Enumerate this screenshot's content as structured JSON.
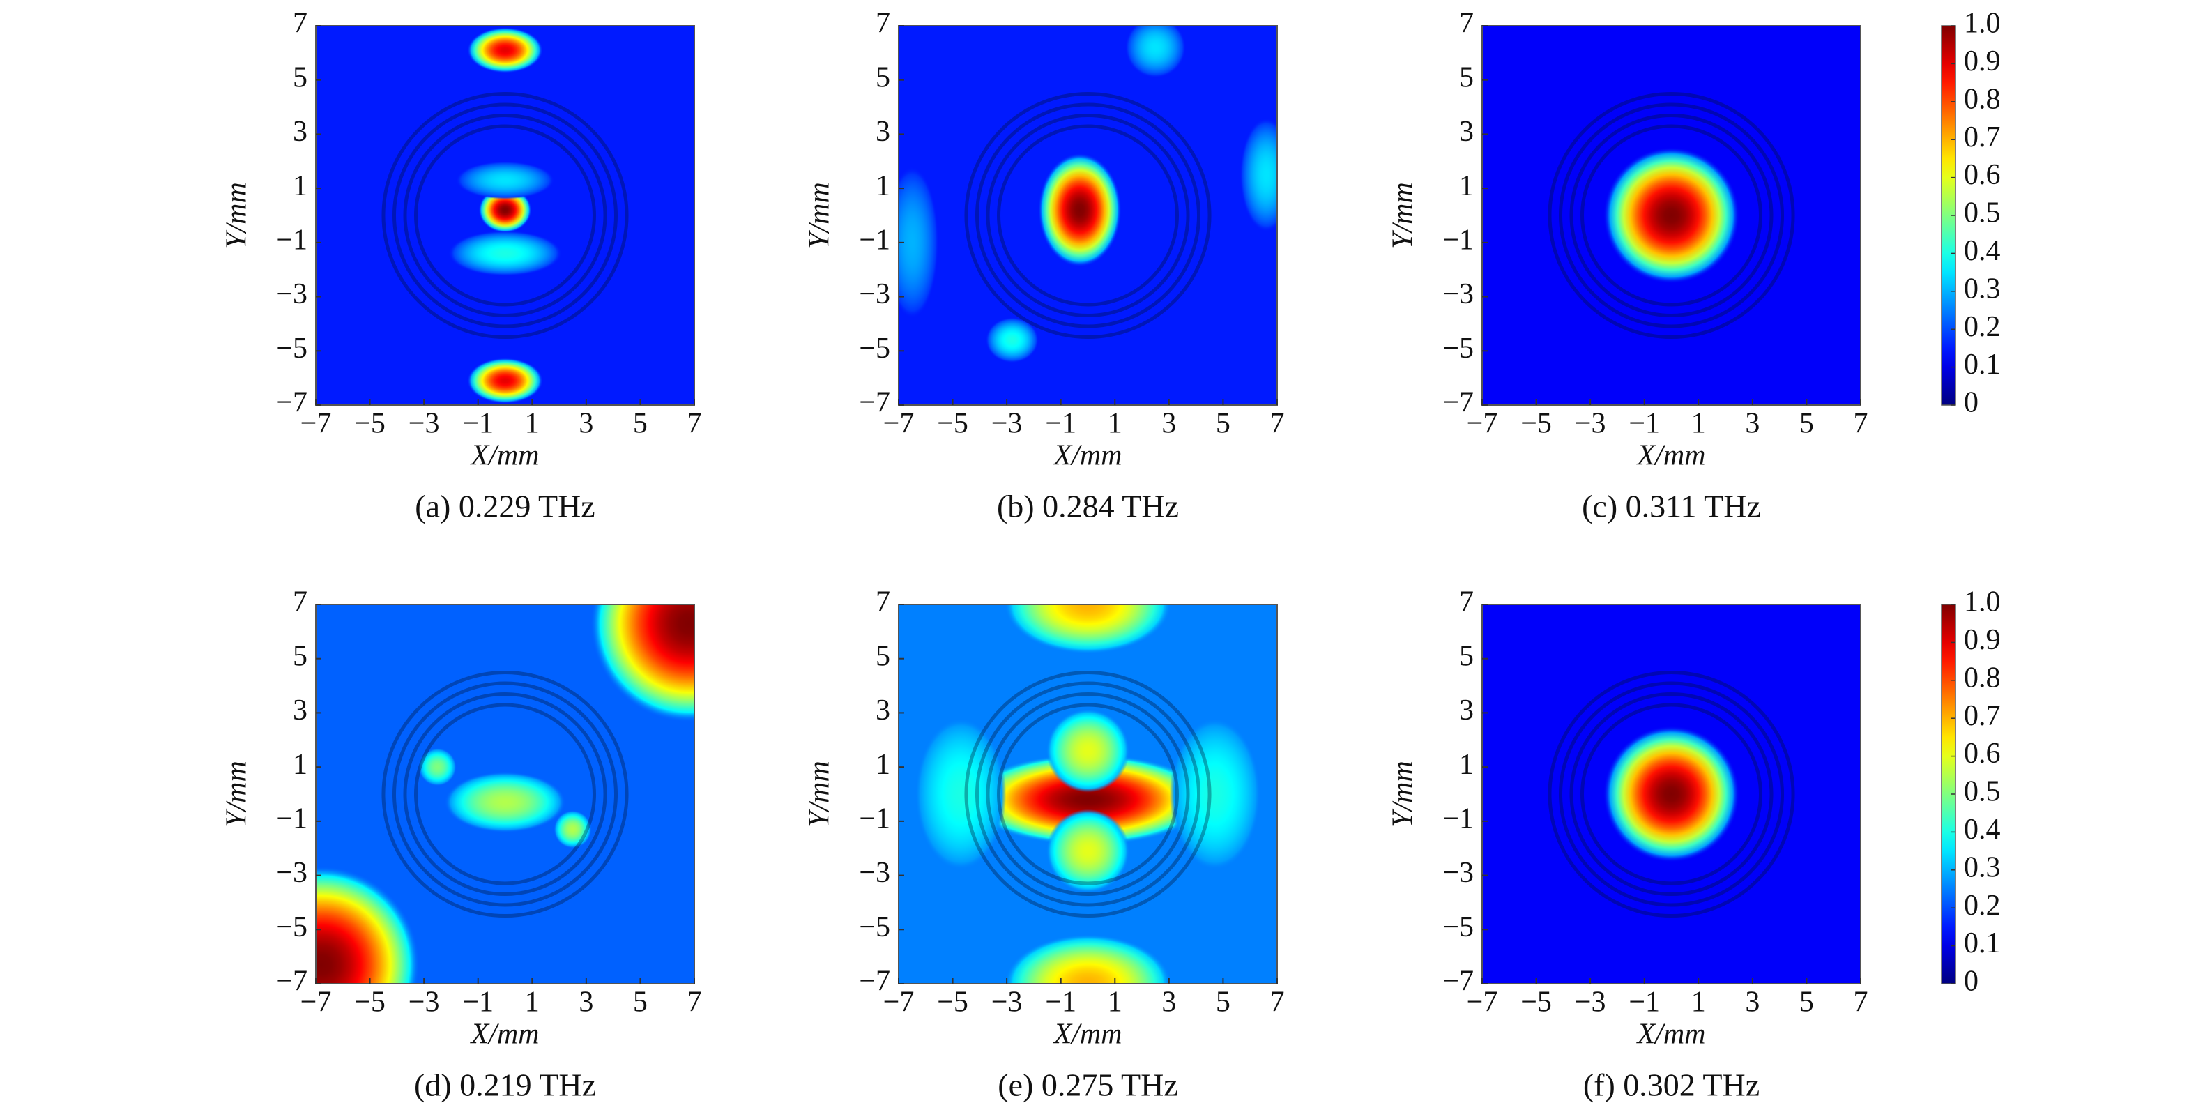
{
  "chart_data": [
    {
      "type": "heatmap",
      "title": "(a) 0.229 THz",
      "xlabel": "X/mm",
      "ylabel": "Y/mm",
      "xlim": [
        -7,
        7
      ],
      "ylim": [
        -7,
        7
      ],
      "xticks": [
        {
          "value": -7,
          "label": "−7"
        },
        {
          "value": -5,
          "label": "−5"
        },
        {
          "value": -3,
          "label": "−3"
        },
        {
          "value": -1,
          "label": "−1"
        },
        1,
        3,
        5,
        7
      ],
      "yticks": [
        {
          "value": -7,
          "label": "−7"
        },
        {
          "value": -5,
          "label": "−5"
        },
        {
          "value": -3,
          "label": "−3"
        },
        {
          "value": -1,
          "label": "−1"
        },
        1,
        3,
        5,
        7
      ],
      "background": 0.15,
      "spots": [
        {
          "x": 0,
          "y": 0.2,
          "rx": 0.7,
          "ry": 0.6,
          "value": 1.0
        },
        {
          "x": 0,
          "y": 6.1,
          "rx": 1.0,
          "ry": 0.6,
          "value": 0.9
        },
        {
          "x": 0,
          "y": -6.1,
          "rx": 1.0,
          "ry": 0.6,
          "value": 0.9
        },
        {
          "x": 0,
          "y": 1.3,
          "rx": 1.3,
          "ry": 0.5,
          "value": 0.35
        },
        {
          "x": 0,
          "y": -1.4,
          "rx": 1.5,
          "ry": 0.6,
          "value": 0.4
        }
      ]
    },
    {
      "type": "heatmap",
      "title": "(b) 0.284 THz",
      "xlabel": "X/mm",
      "ylabel": "Y/mm",
      "xlim": [
        -7,
        7
      ],
      "ylim": [
        -7,
        7
      ],
      "xticks": [
        {
          "value": -7,
          "label": "−7"
        },
        {
          "value": -5,
          "label": "−5"
        },
        {
          "value": -3,
          "label": "−3"
        },
        {
          "value": -1,
          "label": "−1"
        },
        1,
        3,
        5,
        7
      ],
      "yticks": [
        {
          "value": -7,
          "label": "−7"
        },
        {
          "value": -5,
          "label": "−5"
        },
        {
          "value": -3,
          "label": "−3"
        },
        {
          "value": -1,
          "label": "−1"
        },
        1,
        3,
        5,
        7
      ],
      "background": 0.15,
      "spots": [
        {
          "x": -0.3,
          "y": 0.2,
          "rx": 1.1,
          "ry": 1.5,
          "value": 1.0
        },
        {
          "x": 6.6,
          "y": 1.5,
          "rx": 0.7,
          "ry": 1.5,
          "value": 0.35
        },
        {
          "x": -6.5,
          "y": -1.0,
          "rx": 0.7,
          "ry": 2.0,
          "value": 0.3
        },
        {
          "x": -2.8,
          "y": -4.6,
          "rx": 0.7,
          "ry": 0.6,
          "value": 0.4
        },
        {
          "x": 2.5,
          "y": 6.2,
          "rx": 0.8,
          "ry": 0.8,
          "value": 0.35
        }
      ]
    },
    {
      "type": "heatmap",
      "title": "(c) 0.311 THz",
      "xlabel": "X/mm",
      "ylabel": "Y/mm",
      "xlim": [
        -7,
        7
      ],
      "ylim": [
        -7,
        7
      ],
      "xticks": [
        {
          "value": -7,
          "label": "−7"
        },
        {
          "value": -5,
          "label": "−5"
        },
        {
          "value": -3,
          "label": "−3"
        },
        {
          "value": -1,
          "label": "−1"
        },
        1,
        3,
        5,
        7
      ],
      "yticks": [
        {
          "value": -7,
          "label": "−7"
        },
        {
          "value": -5,
          "label": "−5"
        },
        {
          "value": -3,
          "label": "−3"
        },
        {
          "value": -1,
          "label": "−1"
        },
        1,
        3,
        5,
        7
      ],
      "background": 0.12,
      "spots": [
        {
          "x": 0,
          "y": 0,
          "rx": 1.8,
          "ry": 1.8,
          "value": 1.0
        }
      ],
      "colorbar": {
        "zlim": [
          0,
          1
        ],
        "zticks": [
          0,
          0.1,
          0.2,
          0.3,
          0.4,
          0.5,
          0.6,
          0.7,
          0.8,
          0.9,
          {
            "value": 1,
            "label": "1.0"
          }
        ]
      }
    },
    {
      "type": "heatmap",
      "title": "(d) 0.219 THz",
      "xlabel": "X/mm",
      "ylabel": "Y/mm",
      "xlim": [
        -7,
        7
      ],
      "ylim": [
        -7,
        7
      ],
      "xticks": [
        {
          "value": -7,
          "label": "−7"
        },
        {
          "value": -5,
          "label": "−5"
        },
        {
          "value": -3,
          "label": "−3"
        },
        {
          "value": -1,
          "label": "−1"
        },
        1,
        3,
        5,
        7
      ],
      "yticks": [
        {
          "value": -7,
          "label": "−7"
        },
        {
          "value": -5,
          "label": "−5"
        },
        {
          "value": -3,
          "label": "−3"
        },
        {
          "value": -1,
          "label": "−1"
        },
        1,
        3,
        5,
        7
      ],
      "background": 0.22,
      "spots": [
        {
          "x": 6.8,
          "y": 6.3,
          "rx": 2.6,
          "ry": 2.6,
          "value": 1.0
        },
        {
          "x": -6.8,
          "y": -6.3,
          "rx": 2.6,
          "ry": 2.6,
          "value": 1.0
        },
        {
          "x": 0,
          "y": -0.3,
          "rx": 1.6,
          "ry": 0.8,
          "value": 0.55
        },
        {
          "x": -2.5,
          "y": 1.0,
          "rx": 0.5,
          "ry": 0.5,
          "value": 0.5
        },
        {
          "x": 2.5,
          "y": -1.3,
          "rx": 0.5,
          "ry": 0.5,
          "value": 0.55
        }
      ]
    },
    {
      "type": "heatmap",
      "title": "(e) 0.275 THz",
      "xlabel": "X/mm",
      "ylabel": "Y/mm",
      "xlim": [
        -7,
        7
      ],
      "ylim": [
        -7,
        7
      ],
      "xticks": [
        {
          "value": -7,
          "label": "−7"
        },
        {
          "value": -5,
          "label": "−5"
        },
        {
          "value": -3,
          "label": "−3"
        },
        {
          "value": -1,
          "label": "−1"
        },
        1,
        3,
        5,
        7
      ],
      "yticks": [
        {
          "value": -7,
          "label": "−7"
        },
        {
          "value": -5,
          "label": "−5"
        },
        {
          "value": -3,
          "label": "−3"
        },
        {
          "value": -1,
          "label": "−1"
        },
        1,
        3,
        5,
        7
      ],
      "background": 0.25,
      "spots": [
        {
          "x": 0,
          "y": -0.2,
          "rx": 3.2,
          "ry": 1.2,
          "value": 1.0
        },
        {
          "x": 0,
          "y": 1.6,
          "rx": 1.1,
          "ry": 1.1,
          "value": 0.6
        },
        {
          "x": 0,
          "y": -2.1,
          "rx": 1.1,
          "ry": 1.1,
          "value": 0.6
        },
        {
          "x": 0,
          "y": 7.0,
          "rx": 2.2,
          "ry": 1.3,
          "value": 0.7
        },
        {
          "x": 0,
          "y": -7.0,
          "rx": 2.2,
          "ry": 1.3,
          "value": 0.7
        },
        {
          "x": -4.7,
          "y": 0,
          "rx": 1.2,
          "ry": 2.0,
          "value": 0.4
        },
        {
          "x": 4.7,
          "y": 0,
          "rx": 1.2,
          "ry": 2.0,
          "value": 0.4
        }
      ]
    },
    {
      "type": "heatmap",
      "title": "(f) 0.302 THz",
      "xlabel": "X/mm",
      "ylabel": "Y/mm",
      "xlim": [
        -7,
        7
      ],
      "ylim": [
        -7,
        7
      ],
      "xticks": [
        {
          "value": -7,
          "label": "−7"
        },
        {
          "value": -5,
          "label": "−5"
        },
        {
          "value": -3,
          "label": "−3"
        },
        {
          "value": -1,
          "label": "−1"
        },
        1,
        3,
        5,
        7
      ],
      "yticks": [
        {
          "value": -7,
          "label": "−7"
        },
        {
          "value": -5,
          "label": "−5"
        },
        {
          "value": -3,
          "label": "−3"
        },
        {
          "value": -1,
          "label": "−1"
        },
        1,
        3,
        5,
        7
      ],
      "background": 0.12,
      "spots": [
        {
          "x": 0,
          "y": 0,
          "rx": 1.8,
          "ry": 1.8,
          "value": 1.0
        }
      ],
      "colorbar": {
        "zlim": [
          0,
          1
        ],
        "zticks": [
          0,
          0.1,
          0.2,
          0.3,
          0.4,
          0.5,
          0.6,
          0.7,
          0.8,
          0.9,
          {
            "value": 1,
            "label": "1.0"
          }
        ]
      }
    }
  ]
}
